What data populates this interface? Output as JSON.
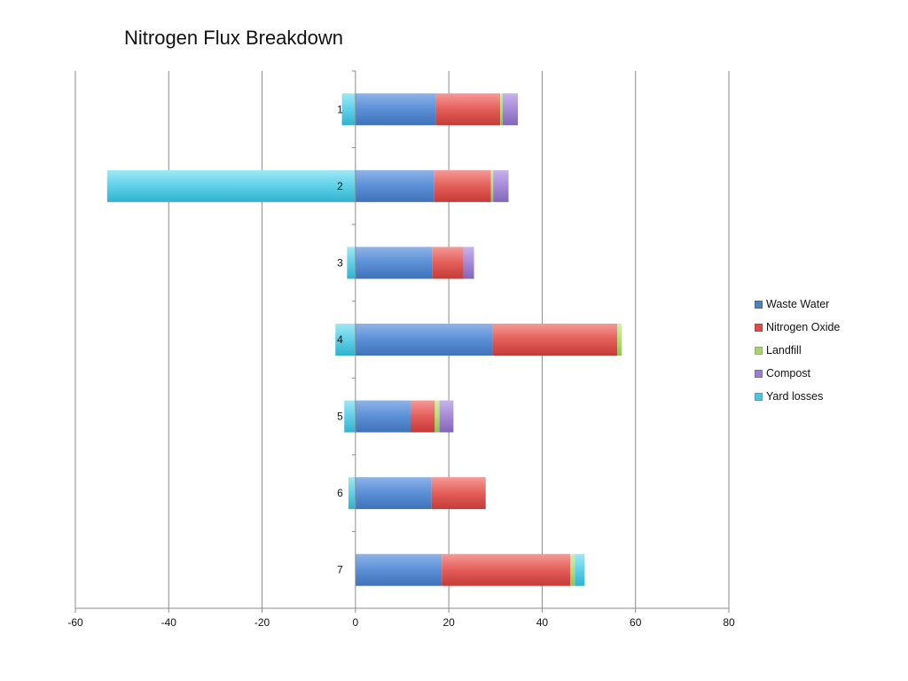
{
  "chart_data": {
    "type": "bar",
    "orientation": "horizontal",
    "stacked": true,
    "title": "Nitrogen Flux Breakdown",
    "categories": [
      "1",
      "2",
      "3",
      "4",
      "5",
      "6",
      "7"
    ],
    "xlim": [
      -60,
      80
    ],
    "xticks": [
      "-60",
      "-40",
      "-20",
      "0",
      "20",
      "40",
      "60",
      "80"
    ],
    "grid": true,
    "legend_position": "right",
    "series": [
      {
        "name": "Waste Water",
        "color": "#4f81bd",
        "values": [
          17.2,
          16.8,
          16.5,
          29.3,
          11.8,
          16.3,
          18.5
        ]
      },
      {
        "name": "Nitrogen Oxide",
        "color": "#e04a47",
        "values": [
          13.8,
          12.2,
          6.6,
          26.8,
          5.2,
          11.6,
          27.5
        ]
      },
      {
        "name": "Landfill",
        "color": "#a7d36b",
        "values": [
          0.5,
          0.5,
          0,
          0.9,
          1.0,
          0,
          1.0
        ]
      },
      {
        "name": "Compost",
        "color": "#9b7ecb",
        "values": [
          3.3,
          3.3,
          2.3,
          0,
          3.0,
          0,
          0
        ]
      },
      {
        "name": "Yard losses",
        "color": "#4cc6e0",
        "values": [
          -2.9,
          -53.2,
          -1.8,
          -4.3,
          -2.4,
          -1.5,
          2.1
        ]
      }
    ]
  }
}
